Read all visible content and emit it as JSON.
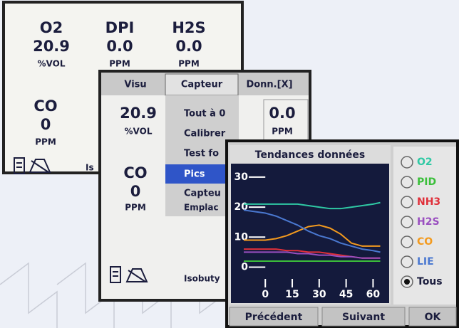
{
  "screen1": {
    "readings": [
      {
        "gas": "O2",
        "value": "20.9",
        "unit": "%VOL"
      },
      {
        "gas": "DPI",
        "value": "0.0",
        "unit": "PPM"
      },
      {
        "gas": "H2S",
        "value": "0.0",
        "unit": "PPM"
      },
      {
        "gas": "CO",
        "value": "0",
        "unit": "PPM"
      }
    ],
    "status": "Is"
  },
  "screen2": {
    "tabs": [
      "Visu",
      "Capteur",
      "Donn.[X]"
    ],
    "readings": [
      {
        "value": "20.9",
        "unit": "%VOL"
      },
      {
        "value": "0.0",
        "unit": "PPM"
      },
      {
        "gas": "CO",
        "value": "0",
        "unit": "PPM"
      }
    ],
    "menu": [
      "Tout à 0",
      "Calibrer",
      "Test fo",
      "Pics",
      "Capteu",
      "Emplac"
    ],
    "status": "Isobuty"
  },
  "chart_data": {
    "type": "line",
    "title": "Tendances données",
    "x": [
      -12,
      -6,
      0,
      6,
      12,
      18,
      24,
      30,
      36,
      42,
      48,
      54,
      60,
      64
    ],
    "xlim": [
      -12,
      64
    ],
    "xticks": [
      0,
      15,
      30,
      45,
      60
    ],
    "ylim": [
      -7,
      34
    ],
    "yticks": [
      0,
      10,
      20,
      30
    ],
    "series": [
      {
        "name": "O2",
        "color": "#2fc9a4",
        "values": [
          21,
          21,
          21,
          21,
          21,
          21,
          20.5,
          20,
          19.5,
          19.5,
          20,
          20.5,
          21,
          21.5
        ]
      },
      {
        "name": "PID",
        "color": "#3bbf3b",
        "values": [
          2,
          2,
          2,
          2,
          2,
          2,
          2,
          2,
          2,
          2,
          2,
          2,
          2,
          2
        ]
      },
      {
        "name": "NH3",
        "color": "#e0303a",
        "values": [
          6,
          6,
          6,
          6,
          5.5,
          5.5,
          5,
          5,
          4.5,
          4,
          3.5,
          3,
          3,
          3
        ]
      },
      {
        "name": "H2S",
        "color": "#9a4fc0",
        "values": [
          5,
          5,
          5,
          5,
          5,
          4.5,
          4.5,
          4,
          4,
          3.5,
          3.5,
          3,
          3,
          3
        ]
      },
      {
        "name": "CO",
        "color": "#f39a1e",
        "values": [
          9,
          9,
          9,
          9.5,
          10.5,
          12,
          13.5,
          14,
          13,
          11,
          8,
          7,
          7,
          7
        ]
      },
      {
        "name": "LIE",
        "color": "#4a78d0",
        "values": [
          19,
          18.5,
          18,
          17,
          15.5,
          14,
          12,
          10.5,
          9.5,
          8,
          7,
          6,
          5.5,
          5
        ]
      }
    ],
    "all_option": "Tous"
  },
  "buttons": [
    "Précédent",
    "Suivant",
    "OK"
  ]
}
